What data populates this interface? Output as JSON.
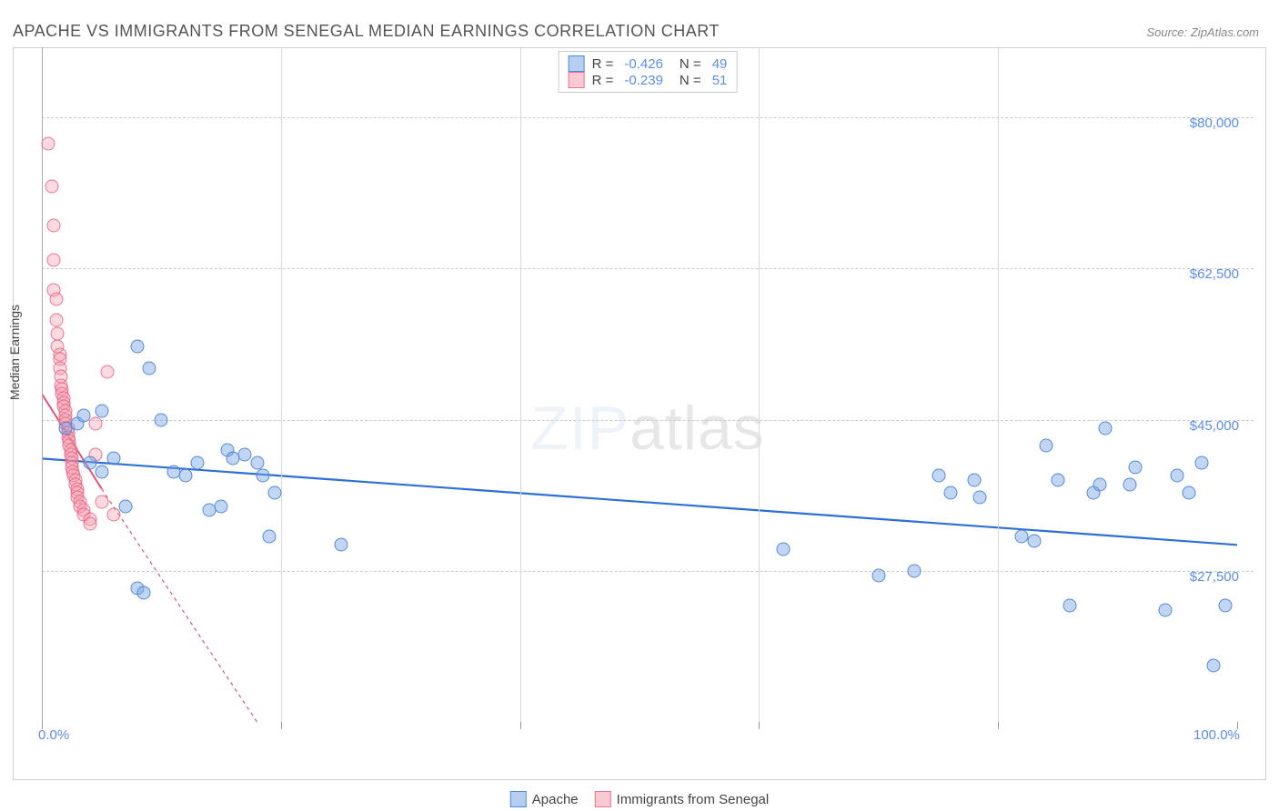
{
  "title": "APACHE VS IMMIGRANTS FROM SENEGAL MEDIAN EARNINGS CORRELATION CHART",
  "source": "Source: ZipAtlas.com",
  "y_axis_label": "Median Earnings",
  "watermark_zip": "ZIP",
  "watermark_atlas": "atlas",
  "chart": {
    "type": "scatter",
    "xlim": [
      0,
      100
    ],
    "ylim": [
      10000,
      87500
    ],
    "x_ticks": [
      0,
      20,
      40,
      60,
      80,
      100
    ],
    "x_tick_labels_visible": {
      "min": "0.0%",
      "max": "100.0%"
    },
    "y_ticks": [
      27500,
      45000,
      62500,
      80000
    ],
    "y_tick_labels": [
      "$27,500",
      "$45,000",
      "$62,500",
      "$80,000"
    ],
    "grid_color": "#cccccc",
    "background_color": "#ffffff",
    "point_radius": 7.5,
    "series": {
      "apache": {
        "label": "Apache",
        "color_fill": "rgba(120,165,230,0.45)",
        "color_stroke": "rgba(70,130,210,0.9)",
        "R": "-0.426",
        "N": "49",
        "trend": {
          "x1": 0,
          "y1": 40500,
          "x2": 100,
          "y2": 30500,
          "color": "#2e6fd6",
          "width": 2.2,
          "dash": "none"
        },
        "points": [
          [
            2,
            44000
          ],
          [
            3,
            44500
          ],
          [
            3.5,
            45500
          ],
          [
            4,
            40000
          ],
          [
            5,
            46000
          ],
          [
            5,
            39000
          ],
          [
            6,
            40500
          ],
          [
            7,
            35000
          ],
          [
            8,
            53500
          ],
          [
            8,
            25500
          ],
          [
            8.5,
            25000
          ],
          [
            9,
            51000
          ],
          [
            10,
            45000
          ],
          [
            11,
            39000
          ],
          [
            12,
            38500
          ],
          [
            13,
            40000
          ],
          [
            14,
            34500
          ],
          [
            15,
            35000
          ],
          [
            15.5,
            41500
          ],
          [
            16,
            40500
          ],
          [
            17,
            41000
          ],
          [
            18,
            40000
          ],
          [
            18.5,
            38500
          ],
          [
            19,
            31500
          ],
          [
            19.5,
            36500
          ],
          [
            25,
            30500
          ],
          [
            62,
            30000
          ],
          [
            70,
            27000
          ],
          [
            73,
            27500
          ],
          [
            75,
            38500
          ],
          [
            76,
            36500
          ],
          [
            78,
            38000
          ],
          [
            78.5,
            36000
          ],
          [
            82,
            31500
          ],
          [
            83,
            31000
          ],
          [
            84,
            42000
          ],
          [
            85,
            38000
          ],
          [
            86,
            23500
          ],
          [
            88,
            36500
          ],
          [
            88.5,
            37500
          ],
          [
            89,
            44000
          ],
          [
            91,
            37500
          ],
          [
            91.5,
            39500
          ],
          [
            94,
            23000
          ],
          [
            95,
            38500
          ],
          [
            96,
            36500
          ],
          [
            97,
            40000
          ],
          [
            98,
            16500
          ],
          [
            99,
            23500
          ]
        ]
      },
      "senegal": {
        "label": "Immigrants from Senegal",
        "color_fill": "rgba(245,150,170,0.35)",
        "color_stroke": "rgba(230,100,130,0.85)",
        "R": "-0.239",
        "N": "51",
        "trend": {
          "x1": 0,
          "y1": 48000,
          "x2": 5,
          "y2": 37000,
          "color": "#e05577",
          "width": 2.0,
          "dash": "none",
          "extrap": {
            "x2": 18,
            "y2": 10000,
            "dash": "4,4"
          }
        },
        "points": [
          [
            0.5,
            77000
          ],
          [
            0.8,
            72000
          ],
          [
            1,
            67500
          ],
          [
            1,
            63500
          ],
          [
            1,
            60000
          ],
          [
            1.2,
            59000
          ],
          [
            1.2,
            56500
          ],
          [
            1.3,
            55000
          ],
          [
            1.3,
            53500
          ],
          [
            1.5,
            52500
          ],
          [
            1.5,
            52000
          ],
          [
            1.5,
            51000
          ],
          [
            1.6,
            50000
          ],
          [
            1.6,
            49000
          ],
          [
            1.7,
            48500
          ],
          [
            1.7,
            48000
          ],
          [
            1.8,
            47500
          ],
          [
            1.8,
            47000
          ],
          [
            1.8,
            46500
          ],
          [
            2,
            46000
          ],
          [
            2,
            45500
          ],
          [
            2,
            45000
          ],
          [
            2,
            44500
          ],
          [
            2.2,
            44000
          ],
          [
            2.2,
            43500
          ],
          [
            2.2,
            43000
          ],
          [
            2.3,
            42500
          ],
          [
            2.3,
            42000
          ],
          [
            2.4,
            41500
          ],
          [
            2.4,
            41000
          ],
          [
            2.5,
            40500
          ],
          [
            2.5,
            40000
          ],
          [
            2.5,
            39500
          ],
          [
            2.6,
            39000
          ],
          [
            2.7,
            38500
          ],
          [
            2.8,
            38000
          ],
          [
            2.8,
            37500
          ],
          [
            3,
            37000
          ],
          [
            3,
            36500
          ],
          [
            3,
            36000
          ],
          [
            3.2,
            35500
          ],
          [
            3.2,
            35000
          ],
          [
            3.5,
            34500
          ],
          [
            3.5,
            34000
          ],
          [
            4,
            33500
          ],
          [
            4,
            33000
          ],
          [
            4.5,
            41000
          ],
          [
            5,
            35500
          ],
          [
            5.5,
            50500
          ],
          [
            6,
            34000
          ],
          [
            4.5,
            44500
          ]
        ]
      }
    },
    "legend_top": {
      "R_label": "R =",
      "N_label": "N ="
    }
  }
}
